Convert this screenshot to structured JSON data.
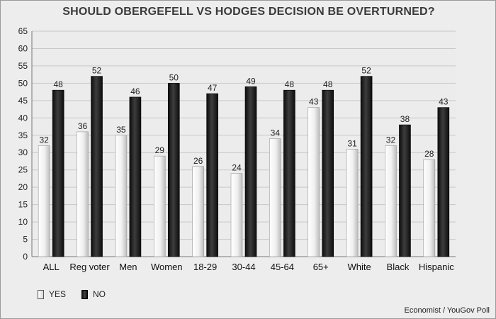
{
  "chart_data": {
    "type": "bar",
    "title": "SHOULD OBERGEFELL VS HODGES DECISION BE OVERTURNED?",
    "categories": [
      "ALL",
      "Reg voter",
      "Men",
      "Women",
      "18-29",
      "30-44",
      "45-64",
      "65+",
      "White",
      "Black",
      "Hispanic"
    ],
    "series": [
      {
        "name": "YES",
        "values": [
          32,
          36,
          35,
          29,
          26,
          24,
          34,
          43,
          31,
          32,
          28
        ],
        "color": "#e8e8e8"
      },
      {
        "name": "NO",
        "values": [
          48,
          52,
          46,
          50,
          47,
          49,
          48,
          48,
          52,
          38,
          43
        ],
        "color": "#1a1a1a"
      }
    ],
    "yticks": [
      0,
      5,
      10,
      15,
      20,
      25,
      30,
      35,
      40,
      45,
      50,
      55,
      60,
      65
    ],
    "ylim": [
      0,
      65
    ],
    "grid": true,
    "legend_position": "bottom-left",
    "source": "Economist / YouGov Poll"
  }
}
